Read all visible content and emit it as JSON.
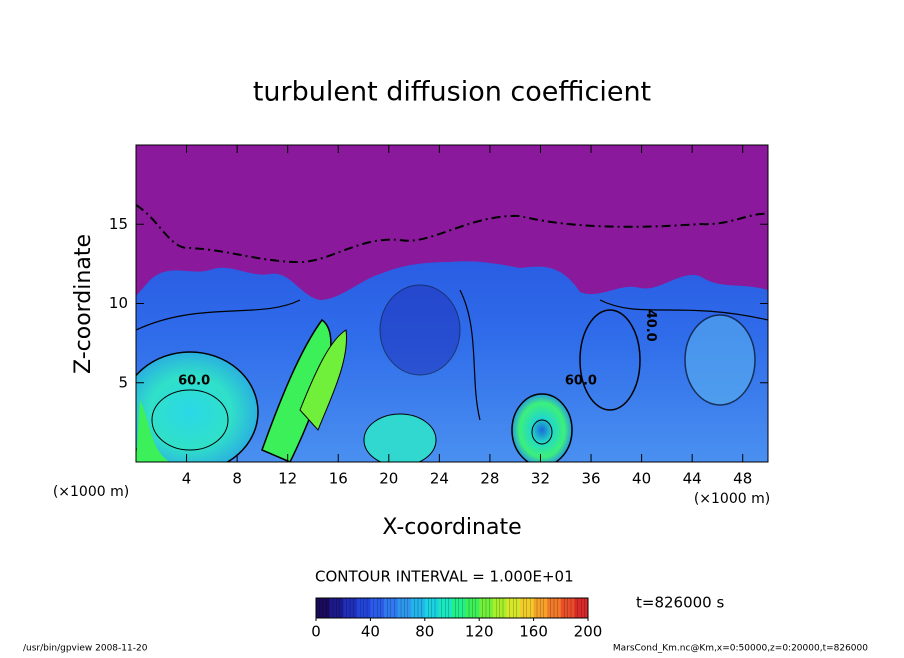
{
  "chart_data": {
    "type": "contour",
    "title": "turbulent diffusion coefficient",
    "xlabel": "X-coordinate",
    "ylabel": "Z-coordinate",
    "xunit": "(×1000 m)",
    "yunit": "(×1000 m)",
    "xlim": [
      0,
      50
    ],
    "xticks": [
      4,
      8,
      12,
      16,
      20,
      24,
      28,
      32,
      36,
      40,
      44,
      48
    ],
    "ylim": [
      0,
      20
    ],
    "yticks": [
      5,
      10,
      15
    ],
    "contour_labels": [
      {
        "text": "60.0",
        "x": 4.6,
        "y": 5.1
      },
      {
        "text": "60.0",
        "x": 35.2,
        "y": 5.1
      },
      {
        "text": "40.0",
        "x": 40.7,
        "y": 8.6
      }
    ],
    "contour_interval": "CONTOUR INTERVAL = 1.000E+01",
    "time_label": "t=826000 s",
    "colorbar": {
      "lim": [
        0,
        200
      ],
      "ticks": [
        0,
        40,
        80,
        120,
        160,
        200
      ],
      "colors": [
        "#1a0a5a",
        "#1c1a8a",
        "#1f2fb8",
        "#2244d8",
        "#2a5ce8",
        "#2f78ee",
        "#2f96ee",
        "#22b4ea",
        "#1ad2e0",
        "#1ae6c0",
        "#22ee8a",
        "#3cf05a",
        "#70f03a",
        "#a8ee2a",
        "#d6e62a",
        "#f0cc2a",
        "#f4a22a",
        "#f07a2a",
        "#e84e2a",
        "#d82a2a"
      ]
    },
    "footer_left": "/usr/bin/gpview   2008-11-20",
    "footer_right": "MarsCond_Km.nc@Km,x=0:50000,z=0:20000,t=826000"
  }
}
